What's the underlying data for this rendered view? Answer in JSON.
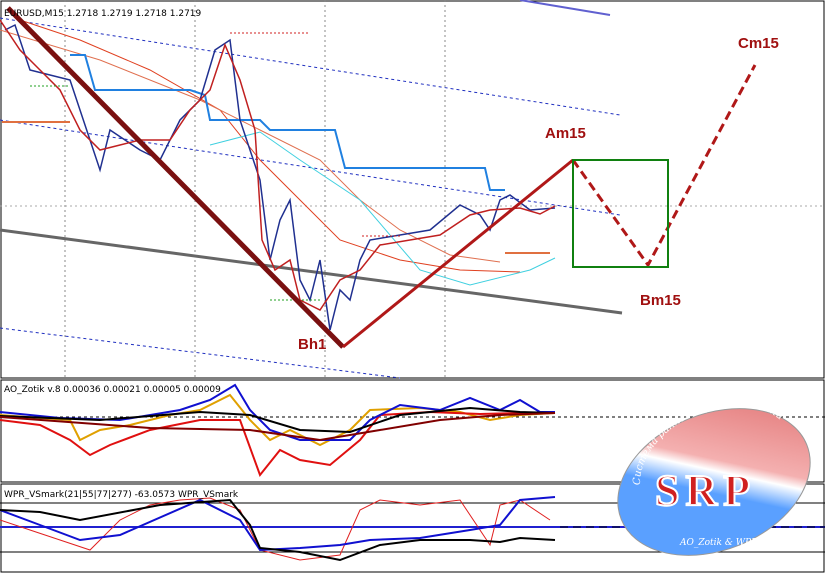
{
  "header": {
    "symbol": "EURUSD,M15  1.2718 1.2719 1.2718 1.2719"
  },
  "labels": {
    "cm": "Cm15",
    "am": "Am15",
    "bm": "Bm15",
    "bh": "Bh1"
  },
  "indicator1": {
    "title": "AO_Zotik v.8 0.00036 0.00021 0.00005 0.00009"
  },
  "indicator2": {
    "title": "WPR_VSmark(21|55|77|277) -63.0573  WPR_VSmark"
  },
  "logo": {
    "mark": "SRP",
    "arc_text": "Система раннего прогнозирования",
    "footer": "AO_Zotik & WPR_VSmark"
  }
}
